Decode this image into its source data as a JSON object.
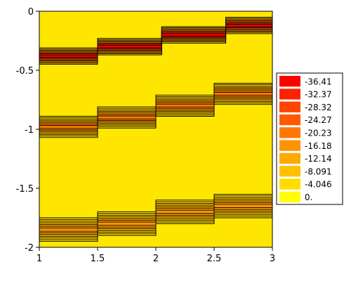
{
  "chart_data": {
    "type": "heatmap",
    "subtype": "filled-contour",
    "title": "",
    "xlabel": "",
    "ylabel": "",
    "xlim": [
      1,
      3
    ],
    "ylim": [
      -2,
      0
    ],
    "x_ticks": [
      "1",
      "1.5",
      "2",
      "2.5",
      "3"
    ],
    "y_ticks": [
      "0",
      "-0.5",
      "-1",
      "-1.5",
      "-2"
    ],
    "legend_placement": "right",
    "levels": [
      {
        "label": "-36.41",
        "color": "#ff0000"
      },
      {
        "label": "-32.37",
        "color": "#ff2200"
      },
      {
        "label": "-28.32",
        "color": "#ff4400"
      },
      {
        "label": "-24.27",
        "color": "#ff5a00"
      },
      {
        "label": "-20.23",
        "color": "#ff7700"
      },
      {
        "label": "-16.18",
        "color": "#ff9200"
      },
      {
        "label": "-12.14",
        "color": "#ffa900"
      },
      {
        "label": "-8.091",
        "color": "#ffc000"
      },
      {
        "label": "-4.046",
        "color": "#ffdd00"
      },
      {
        "label": "0.",
        "color": "#ffff00"
      }
    ],
    "base_color": "#ffe600",
    "bands": [
      {
        "name": "upper-diagonal-band",
        "min_value": -36.41,
        "path": [
          [
            1.0,
            -0.38
          ],
          [
            1.5,
            -0.3
          ],
          [
            2.05,
            -0.2
          ],
          [
            2.6,
            -0.12
          ],
          [
            3.0,
            -0.08
          ]
        ],
        "half_width": 0.07
      },
      {
        "name": "middle-diagonal-band",
        "min_value": -20.23,
        "path": [
          [
            1.0,
            -0.98
          ],
          [
            1.5,
            -0.9
          ],
          [
            2.0,
            -0.8
          ],
          [
            2.5,
            -0.7
          ],
          [
            3.0,
            -0.62
          ]
        ],
        "half_width": 0.09
      },
      {
        "name": "lower-diagonal-band",
        "min_value": -16.18,
        "path": [
          [
            1.0,
            -1.85
          ],
          [
            1.5,
            -1.8
          ],
          [
            2.0,
            -1.7
          ],
          [
            2.5,
            -1.65
          ],
          [
            3.0,
            -1.6
          ]
        ],
        "half_width": 0.1
      }
    ]
  }
}
